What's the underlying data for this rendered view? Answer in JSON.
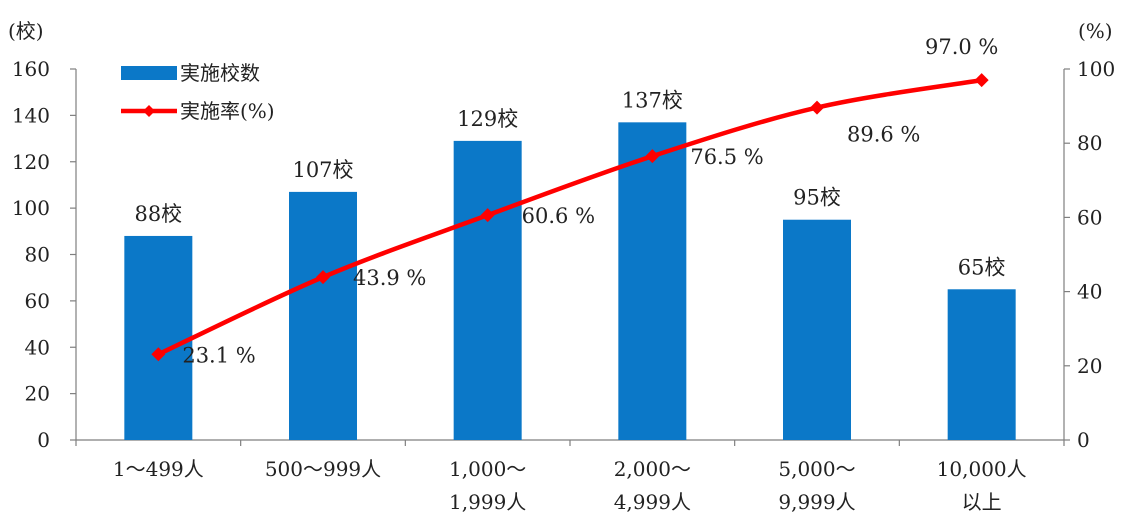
{
  "chart_data": {
    "type": "bar",
    "categories": [
      [
        "1～499人"
      ],
      [
        "500～999人"
      ],
      [
        "1,000～",
        "1,999人"
      ],
      [
        "2,000～",
        "4,999人"
      ],
      [
        "5,000～",
        "9,999人"
      ],
      [
        "10,000人",
        "以上"
      ]
    ],
    "left_axis": {
      "unit_label": "(校)",
      "min": 0,
      "max": 160,
      "step": 20,
      "ticks": [
        "0",
        "20",
        "40",
        "60",
        "80",
        "100",
        "120",
        "140",
        "160"
      ]
    },
    "right_axis": {
      "unit_label": "(%)",
      "min": 0,
      "max": 100,
      "step": 20,
      "ticks": [
        "0",
        "20",
        "40",
        "60",
        "80",
        "100"
      ]
    },
    "series": [
      {
        "name": "実施校数",
        "kind": "bar",
        "axis": "left",
        "color": "#0b78c8",
        "values": [
          88,
          107,
          129,
          137,
          95,
          65
        ],
        "labels": [
          "88校",
          "107校",
          "129校",
          "137校",
          "95校",
          "65校"
        ]
      },
      {
        "name": "実施率(%)",
        "kind": "line",
        "axis": "right",
        "color": "#ff0000",
        "marker": "diamond",
        "values": [
          23.1,
          43.9,
          60.6,
          76.5,
          89.6,
          97.0
        ],
        "labels": [
          "23.1 %",
          "43.9 %",
          "60.6 %",
          "76.5 %",
          "89.6 %",
          "97.0 %"
        ]
      }
    ],
    "legend_placement": "top-left",
    "grid": false
  }
}
